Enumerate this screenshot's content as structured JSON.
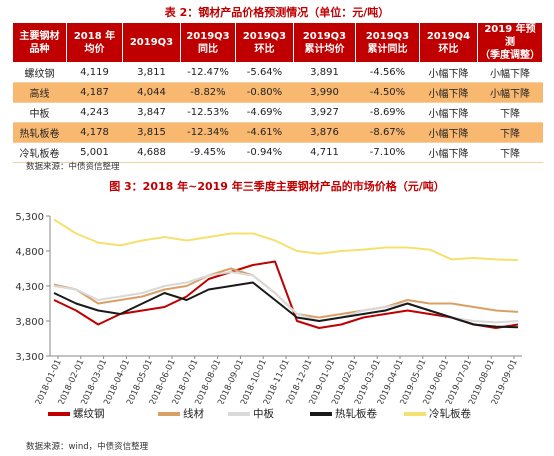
{
  "table": {
    "title": "表 2：钢材产品价格预测情况（单位：元/吨）",
    "headers": [
      [
        "主要钢材",
        "品种"
      ],
      [
        "2018 年",
        "均价"
      ],
      [
        "2019Q3"
      ],
      [
        "2019Q3",
        "同比"
      ],
      [
        "2019Q3",
        "环比"
      ],
      [
        "2019Q3",
        "累计均价"
      ],
      [
        "2019Q3",
        "累计同比"
      ],
      [
        "2019Q4",
        "环比"
      ],
      [
        "2019 年预测",
        "（季度调整）"
      ]
    ],
    "rows": [
      [
        "螺纹钢",
        "4,119",
        "3,811",
        "-12.47%",
        "-5.64%",
        "3,891",
        "-4.56%",
        "小幅下降",
        "小幅下降"
      ],
      [
        "高线",
        "4,187",
        "4,044",
        "-8.82%",
        "-0.80%",
        "3,990",
        "-4.50%",
        "小幅下降",
        "小幅下降"
      ],
      [
        "中板",
        "4,243",
        "3,847",
        "-12.53%",
        "-4.69%",
        "3,927",
        "-8.69%",
        "小幅下降",
        "下降"
      ],
      [
        "热轧板卷",
        "4,178",
        "3,815",
        "-12.34%",
        "-4.61%",
        "3,876",
        "-8.67%",
        "小幅下降",
        "下降"
      ],
      [
        "冷轧板卷",
        "5,001",
        "4,688",
        "-9.45%",
        "-0.94%",
        "4,711",
        "-7.10%",
        "小幅下降",
        "下降"
      ]
    ],
    "source": "数据来源：中债资信整理"
  },
  "chart_title": "图 3：2018 年~2019 年三季度主要钢材产品的市场价格（元/吨）",
  "chart_source": "数据来源：wind，中债资信整理",
  "chart_data": {
    "type": "line",
    "ylim": [
      3300,
      5300
    ],
    "yticks": [
      "3,300",
      "3,800",
      "4,300",
      "4,800",
      "5,300"
    ],
    "ytick_values": [
      3300,
      3800,
      4300,
      4800,
      5300
    ],
    "x_tick_labels": [
      "2018-01-01",
      "2018-02-01",
      "2018-03-01",
      "2018-04-01",
      "2018-05-01",
      "2018-06-01",
      "2018-07-01",
      "2018-08-01",
      "2018-09-01",
      "2018-10-01",
      "2018-11-01",
      "2018-12-01",
      "2019-01-01",
      "2019-02-01",
      "2019-03-01",
      "2019-04-01",
      "2019-05-01",
      "2019-06-01",
      "2019-07-01",
      "2019-08-01",
      "2019-09-01"
    ],
    "x": [
      "2018-01",
      "2018-02",
      "2018-03",
      "2018-04",
      "2018-05",
      "2018-06",
      "2018-07",
      "2018-08",
      "2018-09",
      "2018-10",
      "2018-11",
      "2018-12",
      "2019-01",
      "2019-02",
      "2019-03",
      "2019-04",
      "2019-05",
      "2019-06",
      "2019-07",
      "2019-08",
      "2019-09",
      "2019-10"
    ],
    "series": [
      {
        "name": "螺纹钢",
        "color": "#c00000",
        "values": [
          4100,
          3950,
          3750,
          3900,
          3950,
          4000,
          4150,
          4400,
          4500,
          4600,
          4650,
          3800,
          3700,
          3750,
          3850,
          3900,
          3950,
          3900,
          3850,
          3750,
          3700,
          3750
        ]
      },
      {
        "name": "线材",
        "color": "#d9a066",
        "values": [
          4320,
          4250,
          4050,
          4100,
          4150,
          4250,
          4300,
          4450,
          4550,
          4450,
          4200,
          3900,
          3850,
          3900,
          3950,
          4000,
          4100,
          4050,
          4050,
          4000,
          3950,
          3930
        ]
      },
      {
        "name": "中板",
        "color": "#d9d9d9",
        "values": [
          4300,
          4250,
          4100,
          4150,
          4200,
          4300,
          4350,
          4450,
          4500,
          4450,
          4200,
          3900,
          3800,
          3850,
          3950,
          4000,
          4050,
          3950,
          3850,
          3800,
          3780,
          3800
        ]
      },
      {
        "name": "热轧板卷",
        "color": "#1a1a1a",
        "values": [
          4200,
          4050,
          3950,
          3900,
          4050,
          4200,
          4100,
          4250,
          4300,
          4350,
          4100,
          3850,
          3800,
          3850,
          3900,
          3950,
          4050,
          3950,
          3850,
          3750,
          3720,
          3710
        ]
      },
      {
        "name": "冷轧板卷",
        "color": "#f5e070",
        "values": [
          5250,
          5050,
          4920,
          4880,
          4950,
          5000,
          4950,
          5000,
          5050,
          5050,
          4950,
          4800,
          4760,
          4800,
          4820,
          4850,
          4850,
          4820,
          4680,
          4700,
          4680,
          4670
        ]
      }
    ]
  }
}
